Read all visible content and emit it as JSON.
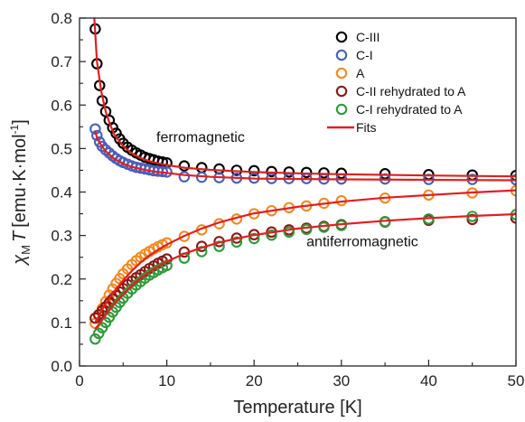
{
  "chart_data": {
    "type": "scatter",
    "xlabel": "Temperature [K]",
    "ylabel": {
      "chi": "χ",
      "sub": "M",
      "t": "T",
      "units": "[emu·K·mol",
      "exp": "-1",
      "close": "]"
    },
    "xlim": [
      0,
      50
    ],
    "ylim": [
      0,
      0.8
    ],
    "xticks": [
      0,
      10,
      20,
      30,
      40,
      50
    ],
    "yticks": [
      0.0,
      0.1,
      0.2,
      0.3,
      0.4,
      0.5,
      0.6,
      0.7,
      0.8
    ],
    "ytick_labels": [
      "0.0",
      "0.1",
      "0.2",
      "0.3",
      "0.4",
      "0.5",
      "0.6",
      "0.7",
      "0.8"
    ],
    "grid": false,
    "legend_position": "top-right",
    "annotations": [
      {
        "text": "ferromagnetic",
        "x": 8.8,
        "y": 0.515
      },
      {
        "text": "antiferromagnetic",
        "x": 26,
        "y": 0.275
      }
    ],
    "series": [
      {
        "name": "C-III",
        "kind": "markers",
        "color": "#000000",
        "x": [
          1.8,
          2.0,
          2.3,
          2.6,
          3.0,
          3.4,
          3.8,
          4.2,
          4.6,
          5.0,
          5.5,
          6.0,
          6.5,
          7.0,
          7.5,
          8.0,
          8.5,
          9.0,
          9.5,
          10.0,
          12,
          14,
          16,
          18,
          20,
          22,
          24,
          26,
          28,
          30,
          35,
          40,
          45,
          50
        ],
        "y": [
          0.775,
          0.695,
          0.645,
          0.61,
          0.585,
          0.565,
          0.548,
          0.535,
          0.522,
          0.512,
          0.503,
          0.496,
          0.49,
          0.485,
          0.48,
          0.477,
          0.474,
          0.471,
          0.469,
          0.467,
          0.46,
          0.456,
          0.453,
          0.45,
          0.449,
          0.447,
          0.446,
          0.445,
          0.444,
          0.443,
          0.442,
          0.44,
          0.439,
          0.438
        ]
      },
      {
        "name": "C-I",
        "kind": "markers",
        "color": "#4a5fb8",
        "x": [
          1.8,
          2.0,
          2.3,
          2.6,
          3.0,
          3.4,
          3.8,
          4.2,
          4.6,
          5.0,
          5.5,
          6.0,
          6.5,
          7.0,
          7.5,
          8.0,
          8.5,
          9.0,
          9.5,
          10.0,
          12,
          14,
          16,
          18,
          20,
          22,
          24,
          26,
          28,
          30,
          35,
          40,
          45,
          50
        ],
        "y": [
          0.545,
          0.53,
          0.515,
          0.505,
          0.497,
          0.49,
          0.483,
          0.477,
          0.472,
          0.468,
          0.464,
          0.46,
          0.457,
          0.455,
          0.453,
          0.451,
          0.449,
          0.448,
          0.447,
          0.446,
          0.435,
          0.434,
          0.433,
          0.432,
          0.432,
          0.431,
          0.431,
          0.431,
          0.43,
          0.43,
          0.43,
          0.429,
          0.429,
          0.428
        ]
      },
      {
        "name": "A",
        "kind": "markers",
        "color": "#f08a24",
        "x": [
          1.8,
          2.2,
          2.6,
          3.0,
          3.4,
          3.8,
          4.2,
          4.6,
          5.0,
          5.5,
          6.0,
          6.5,
          7.0,
          7.5,
          8.0,
          8.5,
          9.0,
          9.5,
          10.0,
          12,
          14,
          16,
          18,
          20,
          22,
          24,
          26,
          28,
          30,
          35,
          40,
          45,
          50
        ],
        "y": [
          0.098,
          0.115,
          0.132,
          0.148,
          0.163,
          0.177,
          0.19,
          0.201,
          0.212,
          0.223,
          0.233,
          0.242,
          0.25,
          0.257,
          0.263,
          0.269,
          0.274,
          0.279,
          0.283,
          0.298,
          0.313,
          0.327,
          0.338,
          0.35,
          0.357,
          0.364,
          0.368,
          0.374,
          0.38,
          0.386,
          0.393,
          0.398,
          0.403
        ]
      },
      {
        "name": "C-II rehydrated to A",
        "kind": "markers",
        "color": "#8a1818",
        "x": [
          1.8,
          2.2,
          2.6,
          3.0,
          3.4,
          3.8,
          4.2,
          4.6,
          5.0,
          5.5,
          6.0,
          6.5,
          7.0,
          7.5,
          8.0,
          8.5,
          9.0,
          9.5,
          10.0,
          12,
          14,
          16,
          18,
          20,
          22,
          24,
          26,
          28,
          30,
          35,
          40,
          45,
          50
        ],
        "y": [
          0.11,
          0.118,
          0.127,
          0.136,
          0.145,
          0.154,
          0.162,
          0.17,
          0.178,
          0.187,
          0.195,
          0.203,
          0.21,
          0.217,
          0.224,
          0.23,
          0.236,
          0.241,
          0.246,
          0.262,
          0.275,
          0.286,
          0.294,
          0.302,
          0.308,
          0.313,
          0.317,
          0.321,
          0.325,
          0.331,
          0.335,
          0.337,
          0.34
        ]
      },
      {
        "name": "C-I rehydrated to A",
        "kind": "markers",
        "color": "#2e9a3a",
        "x": [
          1.8,
          2.2,
          2.6,
          3.0,
          3.4,
          3.8,
          4.2,
          4.6,
          5.0,
          5.5,
          6.0,
          6.5,
          7.0,
          7.5,
          8.0,
          8.5,
          9.0,
          9.5,
          10.0,
          12,
          14,
          16,
          18,
          20,
          22,
          24,
          26,
          28,
          30,
          35,
          40,
          45,
          50
        ],
        "y": [
          0.062,
          0.075,
          0.088,
          0.1,
          0.112,
          0.124,
          0.135,
          0.146,
          0.156,
          0.167,
          0.177,
          0.186,
          0.194,
          0.202,
          0.209,
          0.215,
          0.221,
          0.226,
          0.231,
          0.248,
          0.263,
          0.275,
          0.285,
          0.293,
          0.301,
          0.308,
          0.314,
          0.319,
          0.323,
          0.332,
          0.338,
          0.344,
          0.348
        ]
      },
      {
        "name": "Fits",
        "kind": "lines",
        "color": "#e02020",
        "curves": [
          {
            "x": [
              1.7,
              2.0,
              2.5,
              3.0,
              3.5,
              4.0,
              5.0,
              6.0,
              7.0,
              8.0,
              9.0,
              10.0,
              12,
              15,
              20,
              25,
              30,
              40,
              50
            ],
            "y": [
              0.8,
              0.7,
              0.63,
              0.585,
              0.555,
              0.532,
              0.505,
              0.489,
              0.478,
              0.471,
              0.466,
              0.462,
              0.456,
              0.451,
              0.446,
              0.443,
              0.441,
              0.438,
              0.436
            ]
          },
          {
            "x": [
              1.8,
              2.0,
              2.5,
              3.0,
              4.0,
              5.0,
              6.0,
              7.0,
              8.0,
              9.0,
              10.0,
              12,
              15,
              20,
              30,
              40,
              50
            ],
            "y": [
              0.54,
              0.525,
              0.507,
              0.494,
              0.476,
              0.465,
              0.458,
              0.453,
              0.449,
              0.446,
              0.444,
              0.439,
              0.435,
              0.431,
              0.429,
              0.428,
              0.427
            ]
          },
          {
            "x": [
              1.8,
              2.5,
              3.0,
              4.0,
              5.0,
              6.0,
              7.0,
              8.0,
              9.0,
              10.0,
              12,
              14,
              16,
              18,
              20,
              25,
              30,
              35,
              40,
              45,
              50
            ],
            "y": [
              0.1,
              0.126,
              0.143,
              0.172,
              0.197,
              0.219,
              0.238,
              0.254,
              0.267,
              0.279,
              0.299,
              0.316,
              0.33,
              0.341,
              0.351,
              0.366,
              0.378,
              0.387,
              0.393,
              0.399,
              0.404
            ]
          },
          {
            "x": [
              1.8,
              2.5,
              3.0,
              4.0,
              5.0,
              6.0,
              7.0,
              8.0,
              9.0,
              10.0,
              12,
              14,
              16,
              18,
              20,
              25,
              30,
              35,
              40,
              45,
              50
            ],
            "y": [
              0.085,
              0.103,
              0.117,
              0.143,
              0.165,
              0.185,
              0.202,
              0.216,
              0.229,
              0.24,
              0.258,
              0.272,
              0.284,
              0.293,
              0.301,
              0.316,
              0.326,
              0.334,
              0.34,
              0.345,
              0.349
            ]
          }
        ]
      }
    ]
  }
}
